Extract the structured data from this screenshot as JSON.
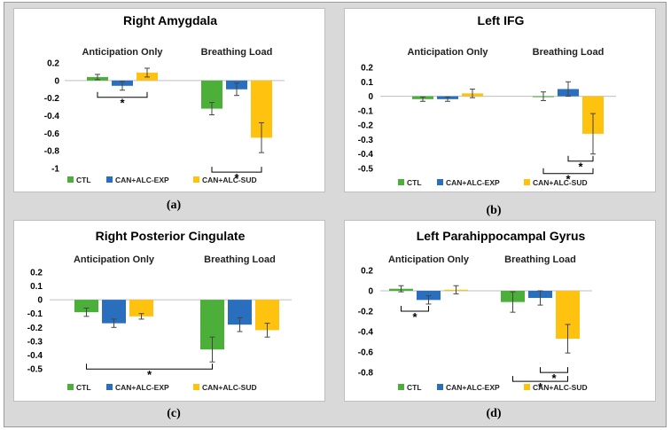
{
  "colors": {
    "CTL": "#4caf3a",
    "CAN+ALC-EXP": "#2a6fbe",
    "CAN+ALC-SUD": "#ffc20e"
  },
  "chart_data": [
    {
      "type": "bar",
      "panel_label": "(a)",
      "title": "Right Amygdala",
      "groups": [
        "Anticipation Only",
        "Breathing Load"
      ],
      "series": [
        {
          "name": "CTL",
          "values": [
            0.04,
            -0.32
          ],
          "errors": [
            0.03,
            0.07
          ]
        },
        {
          "name": "CAN+ALC-EXP",
          "values": [
            -0.06,
            -0.1
          ],
          "errors": [
            0.05,
            0.07
          ]
        },
        {
          "name": "CAN+ALC-SUD",
          "values": [
            0.09,
            -0.65
          ],
          "errors": [
            0.05,
            0.17
          ]
        }
      ],
      "yticks": [
        0.2,
        0,
        -0.2,
        -0.4,
        -0.6,
        -0.8,
        -1
      ],
      "ytick_labels": [
        "0.2",
        "0",
        "-0.2",
        "-0.4",
        "-0.6",
        "-0.8",
        "-1"
      ],
      "ylim": [
        -1,
        0.2
      ],
      "significance": [
        {
          "group": 0,
          "from": 0,
          "to": 2,
          "label": "*"
        },
        {
          "group": 1,
          "from": 0,
          "to": 2,
          "label": "*"
        }
      ],
      "legend": [
        "CTL",
        "CAN+ALC-EXP",
        "CAN+ALC-SUD"
      ]
    },
    {
      "type": "bar",
      "panel_label": "(b)",
      "title": "Left IFG",
      "groups": [
        "Anticipation Only",
        "Breathing Load"
      ],
      "series": [
        {
          "name": "CTL",
          "values": [
            -0.02,
            0
          ],
          "errors": [
            0.015,
            0.03
          ]
        },
        {
          "name": "CAN+ALC-EXP",
          "values": [
            -0.02,
            0.05
          ],
          "errors": [
            0.015,
            0.05
          ]
        },
        {
          "name": "CAN+ALC-SUD",
          "values": [
            0.02,
            -0.26
          ],
          "errors": [
            0.03,
            0.14
          ]
        }
      ],
      "yticks": [
        0.2,
        0.1,
        0,
        -0.1,
        -0.2,
        -0.3,
        -0.4,
        -0.5
      ],
      "ytick_labels": [
        "0.2",
        "0.1",
        "0",
        "-0.1",
        "-0.2",
        "-0.3",
        "-0.4",
        "-0.5"
      ],
      "ylim": [
        -0.5,
        0.2
      ],
      "significance": [
        {
          "group": 1,
          "from": 1,
          "to": 2,
          "label": "*"
        },
        {
          "group": 1,
          "from": 0,
          "to": 2,
          "label": "*"
        }
      ],
      "legend": [
        "CTL",
        "CAN+ALC-EXP",
        "CAN+ALC-SUD"
      ]
    },
    {
      "type": "bar",
      "panel_label": "(c)",
      "title": "Right Posterior Cingulate",
      "groups": [
        "Anticipation Only",
        "Breathing Load"
      ],
      "series": [
        {
          "name": "CTL",
          "values": [
            -0.09,
            -0.36
          ],
          "errors": [
            0.03,
            0.09
          ]
        },
        {
          "name": "CAN+ALC-EXP",
          "values": [
            -0.17,
            -0.18
          ],
          "errors": [
            0.03,
            0.05
          ]
        },
        {
          "name": "CAN+ALC-SUD",
          "values": [
            -0.12,
            -0.22
          ],
          "errors": [
            0.02,
            0.05
          ]
        }
      ],
      "yticks": [
        0.2,
        0.1,
        0,
        -0.1,
        -0.2,
        -0.3,
        -0.4,
        -0.5
      ],
      "ytick_labels": [
        "0.2",
        "0.1",
        "0",
        "-0.1",
        "-0.2",
        "-0.3",
        "-0.4",
        "-0.5"
      ],
      "ylim": [
        -0.5,
        0.2
      ],
      "significance": [
        {
          "group": "span",
          "from": 0,
          "to": 3,
          "label": "*"
        }
      ],
      "legend": [
        "CTL",
        "CAN+ALC-EXP",
        "CAN+ALC-SUD"
      ]
    },
    {
      "type": "bar",
      "panel_label": "(d)",
      "title": "Left Parahippocampal Gyrus",
      "groups": [
        "Anticipation Only",
        "Breathing Load"
      ],
      "series": [
        {
          "name": "CTL",
          "values": [
            0.02,
            -0.11
          ],
          "errors": [
            0.03,
            0.1
          ]
        },
        {
          "name": "CAN+ALC-EXP",
          "values": [
            -0.09,
            -0.07
          ],
          "errors": [
            0.04,
            0.07
          ]
        },
        {
          "name": "CAN+ALC-SUD",
          "values": [
            0.01,
            -0.47
          ],
          "errors": [
            0.04,
            0.14
          ]
        }
      ],
      "yticks": [
        0.2,
        0,
        -0.2,
        -0.4,
        -0.6,
        -0.8
      ],
      "ytick_labels": [
        "0.2",
        "0",
        "-0.2",
        "-0.4",
        "-0.6",
        "-0.8"
      ],
      "ylim": [
        -0.8,
        0.2
      ],
      "significance": [
        {
          "group": 0,
          "from": 0,
          "to": 1,
          "label": "*"
        },
        {
          "group": 1,
          "from": 1,
          "to": 2,
          "label": "*"
        },
        {
          "group": 1,
          "from": 0,
          "to": 2,
          "label": "*"
        }
      ],
      "legend": [
        "CTL",
        "CAN+ALC-EXP",
        "CAN+ALC-SUD"
      ]
    }
  ]
}
